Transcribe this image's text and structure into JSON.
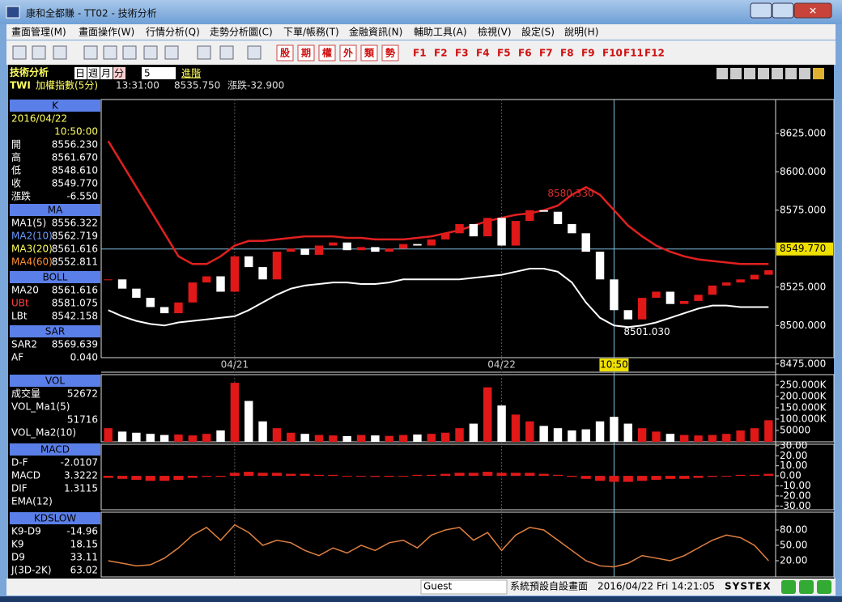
{
  "window": {
    "title": "康和全都賺 - TT02 - 技術分析"
  },
  "menu": [
    "畫面管理(M)",
    "畫面操作(W)",
    "行情分析(Q)",
    "走勢分析圖(C)",
    "下單/帳務(T)",
    "金融資訊(N)",
    "輔助工具(A)",
    "檢視(V)",
    "設定(S)",
    "說明(H)"
  ],
  "toolbar": {
    "quick": [
      "股",
      "期",
      "權",
      "外",
      "類",
      "勢"
    ],
    "fkeys": [
      "F1",
      "F2",
      "F3",
      "F4",
      "F5",
      "F6",
      "F7",
      "F8",
      "F9",
      "F10",
      "F11",
      "F12"
    ]
  },
  "header": {
    "title": "技術分析",
    "periods": [
      "日",
      "週",
      "月",
      "分"
    ],
    "interval": "5",
    "advanced": "進階",
    "symbol": "TWI",
    "name": "加權指數(5分)",
    "time": "13:31:00",
    "price": "8535.750",
    "change": "漲跌-32.900"
  },
  "info_panel": [
    {
      "title": "K",
      "rows": [
        {
          "label": "2016/04/22"
        },
        {
          "value": "10:50:00"
        },
        {
          "label": "開",
          "value": "8556.230"
        },
        {
          "label": "高",
          "value": "8561.670"
        },
        {
          "label": "低",
          "value": "8548.610"
        },
        {
          "label": "收",
          "value": "8549.770"
        },
        {
          "label": "漲跌",
          "value": "-6.550"
        }
      ]
    },
    {
      "title": "MA",
      "rows": [
        {
          "label": "MA1(5)",
          "value": "8556.322"
        },
        {
          "label": "MA2(10)",
          "value": "8562.719"
        },
        {
          "label": "MA3(20)",
          "value": "8561.616"
        },
        {
          "label": "MA4(60)",
          "value": "8552.811"
        }
      ]
    },
    {
      "title": "BOLL",
      "rows": [
        {
          "label": "MA20",
          "value": "8561.616"
        },
        {
          "label": "UBt",
          "value": "8581.075"
        },
        {
          "label": "LBt",
          "value": "8542.158"
        }
      ]
    },
    {
      "title": "SAR",
      "rows": [
        {
          "label": "SAR2",
          "value": "8569.639"
        },
        {
          "label": "AF",
          "value": "0.040"
        }
      ]
    },
    {
      "title": "VOL",
      "rows": [
        {
          "label": "成交量",
          "value": "52672"
        },
        {
          "label": "VOL_Ma1(5)"
        },
        {
          "value": "51716"
        },
        {
          "label": "VOL_Ma2(10)"
        }
      ]
    },
    {
      "title": "MACD",
      "rows": [
        {
          "label": "D-F",
          "value": "-2.0107"
        },
        {
          "label": "MACD",
          "value": "3.3222"
        },
        {
          "label": "DIF",
          "value": "1.3115"
        },
        {
          "label": "EMA(12)"
        }
      ]
    },
    {
      "title": "KDSLOW",
      "rows": [
        {
          "label": "K9-D9",
          "value": "-14.96"
        },
        {
          "label": "K9",
          "value": "18.15"
        },
        {
          "label": "D9",
          "value": "33.11"
        },
        {
          "label": "J(3D-2K)",
          "value": "63.02"
        }
      ]
    }
  ],
  "chart_data": {
    "type": "candlestick",
    "categories": [
      null,
      null,
      null,
      null,
      null,
      null,
      null,
      null,
      null,
      "04/21",
      null,
      null,
      null,
      null,
      null,
      null,
      null,
      null,
      null,
      null,
      null,
      null,
      null,
      null,
      null,
      null,
      null,
      null,
      "04/22",
      null,
      null,
      null,
      null,
      null,
      null,
      null,
      "10:50",
      null,
      null,
      null,
      null,
      null,
      null,
      null,
      null,
      null,
      null,
      null
    ],
    "closes": [
      8530,
      8524,
      8518,
      8512,
      8508,
      8515,
      8528,
      8532,
      8522,
      8545,
      8538,
      8530,
      8548,
      8550,
      8546,
      8552,
      8554,
      8549,
      8551,
      8548,
      8550,
      8553,
      8552,
      8556,
      8560,
      8566,
      8558,
      8570,
      8552,
      8568,
      8575,
      8574,
      8566,
      8560,
      8548,
      8530,
      8510,
      8504,
      8518,
      8522,
      8514,
      8516,
      8520,
      8526,
      8528,
      8530,
      8533,
      8536
    ],
    "boll_upper": [
      8620,
      8605,
      8590,
      8575,
      8560,
      8545,
      8540,
      8540,
      8545,
      8552,
      8555,
      8555,
      8556,
      8557,
      8558,
      8558,
      8558,
      8557,
      8557,
      8556,
      8556,
      8556,
      8557,
      8558,
      8560,
      8562,
      8565,
      8568,
      8570,
      8572,
      8573,
      8575,
      8578,
      8585,
      8590,
      8585,
      8575,
      8565,
      8558,
      8552,
      8548,
      8545,
      8543,
      8542,
      8541,
      8540,
      8540,
      8540
    ],
    "boll_lower": [
      8510,
      8506,
      8503,
      8501,
      8500,
      8502,
      8503,
      8504,
      8505,
      8506,
      8510,
      8515,
      8520,
      8524,
      8526,
      8527,
      8528,
      8528,
      8527,
      8527,
      8528,
      8530,
      8530,
      8530,
      8530,
      8530,
      8531,
      8532,
      8533,
      8535,
      8537,
      8537,
      8535,
      8528,
      8515,
      8505,
      8500,
      8499,
      8500,
      8502,
      8505,
      8508,
      8511,
      8513,
      8513,
      8512,
      8512,
      8512
    ],
    "ylim": [
      8469,
      8647
    ],
    "yticks": [
      {
        "value": 8625,
        "label": "8625.000"
      },
      {
        "value": 8600,
        "label": "8600.000"
      },
      {
        "value": 8575,
        "label": "8575.000"
      },
      {
        "value": 8525,
        "label": "8525.000"
      },
      {
        "value": 8500,
        "label": "8500.000"
      },
      {
        "value": 8475,
        "label": "8475.000"
      }
    ],
    "current": {
      "value": 8549.77,
      "label": "8549.770"
    },
    "annotations": [
      {
        "value": 8580.33,
        "label": "8580.330"
      },
      {
        "value": 8501.03,
        "label": "8501.030"
      }
    ],
    "volume": [
      60000,
      45000,
      40000,
      35000,
      30000,
      32000,
      28000,
      35000,
      50000,
      260000,
      180000,
      90000,
      60000,
      40000,
      35000,
      30000,
      28000,
      25000,
      30000,
      28000,
      26000,
      30000,
      32000,
      35000,
      40000,
      60000,
      80000,
      240000,
      160000,
      120000,
      90000,
      70000,
      60000,
      50000,
      55000,
      90000,
      110000,
      80000,
      60000,
      45000,
      35000,
      30000,
      28000,
      30000,
      35000,
      50000,
      60000,
      95000
    ],
    "vol_ylim": [
      0,
      296000
    ],
    "vol_yticks": [
      {
        "value": 250000,
        "label": "250.000K"
      },
      {
        "value": 200000,
        "label": "200.000K"
      },
      {
        "value": 150000,
        "label": "150.000K"
      },
      {
        "value": 100000,
        "label": "100.000K"
      },
      50000
    ],
    "macd": [
      -2,
      -3,
      -4,
      -5,
      -5,
      -4,
      -2,
      -1,
      -1,
      3,
      4,
      3,
      3,
      2,
      2,
      1,
      1,
      0,
      0,
      -1,
      -1,
      0,
      1,
      1,
      2,
      3,
      3,
      4,
      3,
      3,
      3,
      2,
      1,
      -1,
      -3,
      -5,
      -6,
      -6,
      -5,
      -4,
      -3,
      -3,
      -2,
      -1,
      0,
      1,
      1,
      2
    ],
    "macd_ylim": [
      -33.8,
      31.5
    ],
    "macd_yticks": [
      {
        "value": 30,
        "label": "30.00"
      },
      {
        "value": 20,
        "label": "20.00"
      },
      {
        "value": 10,
        "label": "10.00"
      },
      {
        "value": 0,
        "label": "0.00"
      },
      {
        "value": -10,
        "label": "-10.00"
      },
      {
        "value": -20,
        "label": "-20.00"
      },
      {
        "value": -30,
        "label": "-30.00"
      }
    ],
    "k": [
      20,
      15,
      10,
      12,
      25,
      45,
      70,
      85,
      60,
      90,
      75,
      50,
      60,
      55,
      40,
      30,
      45,
      35,
      50,
      40,
      55,
      60,
      45,
      70,
      80,
      85,
      60,
      75,
      40,
      70,
      85,
      80,
      60,
      40,
      20,
      10,
      8,
      15,
      30,
      25,
      20,
      30,
      45,
      60,
      70,
      65,
      50,
      20
    ],
    "kd_ylim": [
      -11.6,
      114.7
    ],
    "kd_yticks": [
      {
        "value": 80,
        "label": "80.00"
      },
      {
        "value": 50,
        "label": "50.00"
      },
      {
        "value": 20,
        "label": "20.00"
      }
    ],
    "up_color": "#e01818",
    "down_color": "#ffffff",
    "upper_color": "#e02020",
    "lower_color": "#ffffff",
    "k_color": "#e08040"
  },
  "status": {
    "user": "Guest",
    "layout": "系統預設自設畫面",
    "datetime": "2016/04/22 Fri 14:21:05",
    "brand": "SYSTEX"
  }
}
